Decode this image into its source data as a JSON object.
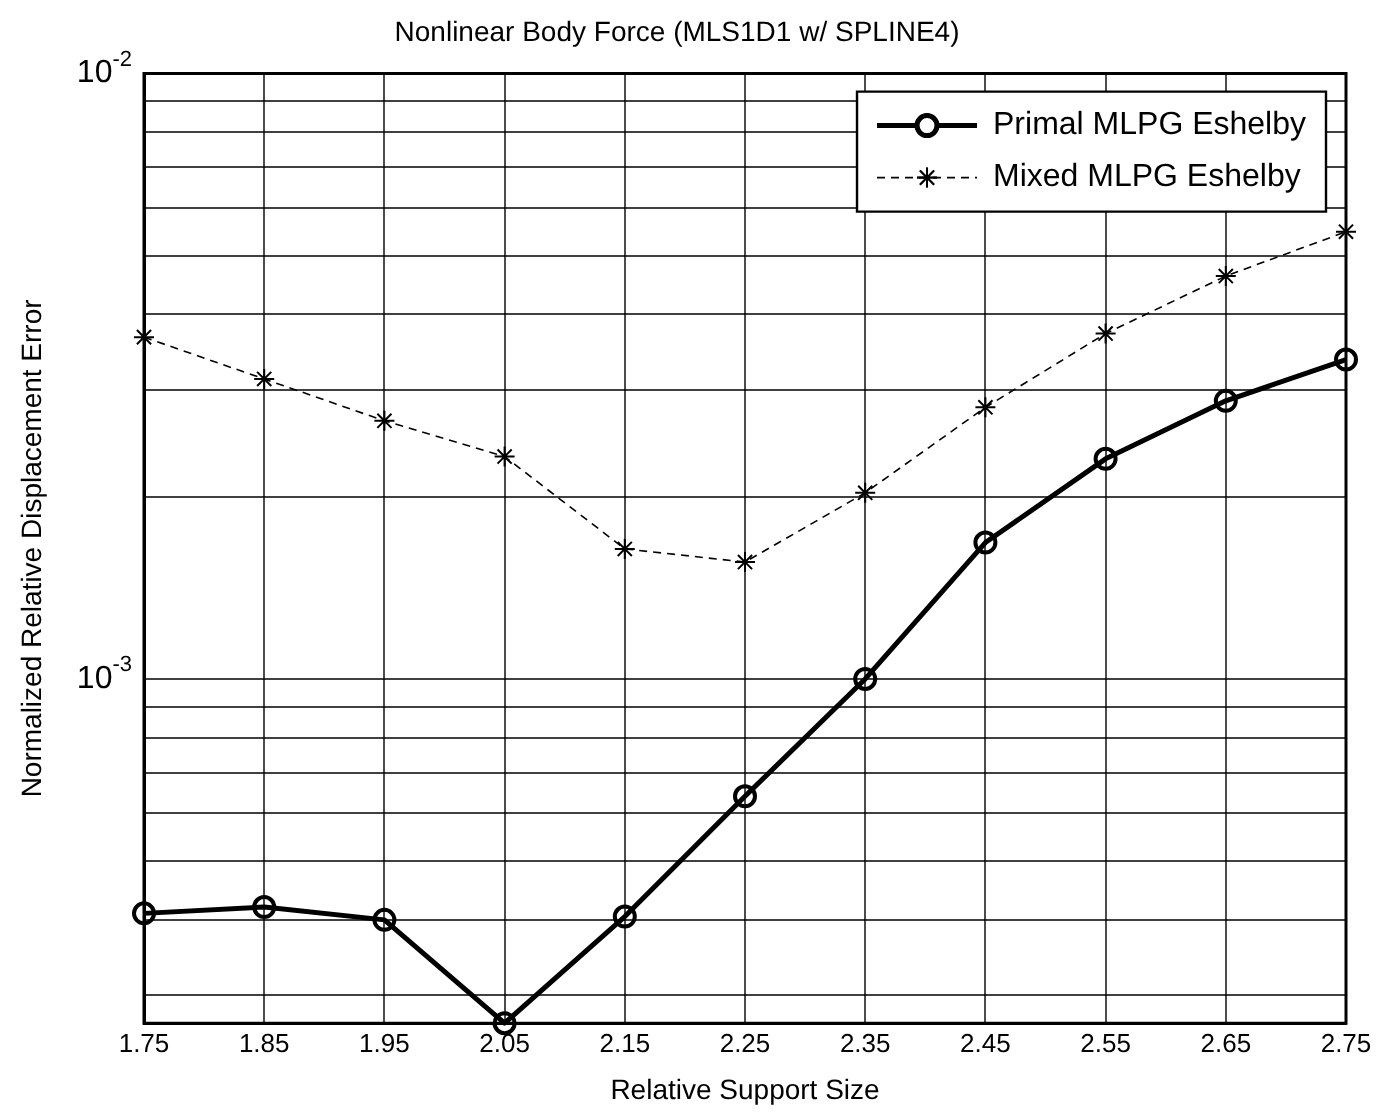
{
  "chart_data": {
    "type": "line",
    "title": "Nonlinear Body Force (MLS1D1 w/ SPLINE4)",
    "xlabel": "Relative Support Size",
    "ylabel": "Normalized Relative Displacement Error",
    "x": [
      1.75,
      1.85,
      1.95,
      2.05,
      2.15,
      2.25,
      2.35,
      2.45,
      2.55,
      2.65,
      2.75
    ],
    "xlim": [
      1.75,
      2.75
    ],
    "xticks": [
      1.75,
      1.85,
      1.95,
      2.05,
      2.15,
      2.25,
      2.35,
      2.45,
      2.55,
      2.65,
      2.75
    ],
    "ylim": [
      0.00027,
      0.01
    ],
    "log": "y",
    "yticks": [
      {
        "value": 0.0003,
        "label": null
      },
      {
        "value": 0.0004,
        "label": null
      },
      {
        "value": 0.0005,
        "label": null
      },
      {
        "value": 0.0006,
        "label": null
      },
      {
        "value": 0.0007,
        "label": null
      },
      {
        "value": 0.0008,
        "label": null
      },
      {
        "value": 0.0009,
        "label": null
      },
      {
        "value": 0.001,
        "label": "10$^{-3}$"
      },
      {
        "value": 0.002,
        "label": null
      },
      {
        "value": 0.003,
        "label": null
      },
      {
        "value": 0.004,
        "label": null
      },
      {
        "value": 0.005,
        "label": null
      },
      {
        "value": 0.006,
        "label": null
      },
      {
        "value": 0.007,
        "label": null
      },
      {
        "value": 0.008,
        "label": null
      },
      {
        "value": 0.009,
        "label": null
      },
      {
        "value": 0.01,
        "label": "10$^{-2}$"
      }
    ],
    "grid": true,
    "legend": "top right",
    "series": [
      {
        "name": "Primal MLPG Eshelby",
        "color": "#000000",
        "marker": "circle",
        "line_style": "solid",
        "values": [
          0.00041,
          0.00042,
          0.0004,
          0.00027,
          0.000405,
          0.00064,
          0.001,
          0.00168,
          0.00231,
          0.00288,
          0.00337
        ]
      },
      {
        "name": "Mixed MLPG Eshelby",
        "color": "#000000",
        "marker": "cross",
        "line_style": "dashed",
        "values": [
          0.00367,
          0.00313,
          0.00267,
          0.00233,
          0.00164,
          0.00156,
          0.00203,
          0.00281,
          0.00372,
          0.00463,
          0.00548
        ]
      }
    ]
  }
}
